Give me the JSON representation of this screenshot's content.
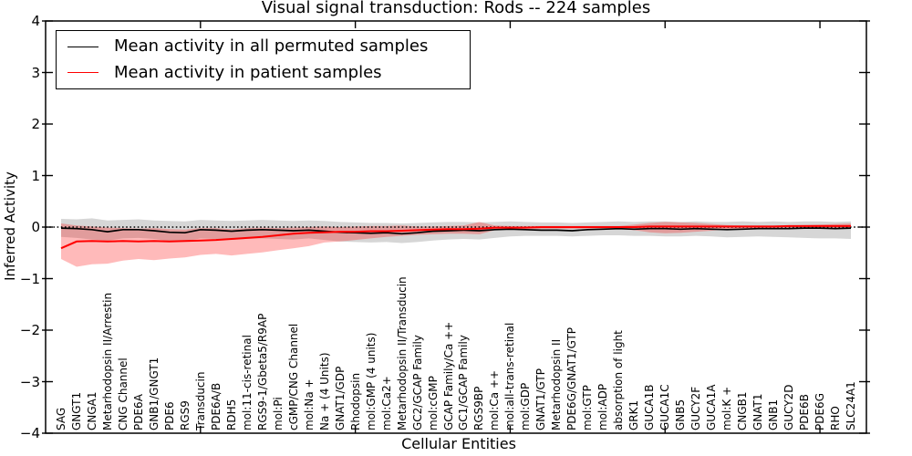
{
  "chart_data": {
    "type": "line",
    "title": "Visual signal transduction: Rods -- 224 samples",
    "xlabel": "Cellular Entities",
    "ylabel": "Inferred Activity",
    "ylim": [
      -4,
      4
    ],
    "xlim": [
      0,
      53
    ],
    "yticks": [
      4,
      3,
      2,
      1,
      0,
      -1,
      -2,
      -3,
      -4
    ],
    "xticks": [
      10,
      20,
      30,
      40,
      50
    ],
    "grid": false,
    "background": "#ffffff",
    "legend_position": "upper left",
    "zero_line": {
      "y": 0,
      "style": "dotted",
      "color": "#000000"
    },
    "categories": [
      "SAG",
      "GNGT1",
      "CNGA1",
      "Metarhodopsin II/Arrestin",
      "CNG Channel",
      "PDE6A",
      "GNB1/GNGT1",
      "PDE6",
      "RGS9",
      "Transducin",
      "PDE6A/B",
      "RDH5",
      "mol:11-cis-retinal",
      "RGS9-1/Gbeta5/R9AP",
      "mol:Pi",
      "cGMP/CNG Channel",
      "mol:Na +",
      "Na + (4 Units)",
      "GNAT1/GDP",
      "Rhodopsin",
      "mol:GMP (4 units)",
      "mol:Ca2+",
      "Metarhodopsin II/Transducin",
      "GC2/GCAP Family",
      "mol:cGMP",
      "GCAP Family/Ca ++",
      "GC1/GCAP Family",
      "RGS9BP",
      "mol:Ca ++",
      "mol:all-trans-retinal",
      "mol:GDP",
      "GNAT1/GTP",
      "Metarhodopsin II",
      "PDE6G/GNAT1/GTP",
      "mol:GTP",
      "mol:ADP",
      "absorption of light",
      "GRK1",
      "GUCA1B",
      "GUCA1C",
      "GNB5",
      "GUCY2F",
      "GUCA1A",
      "mol:K +",
      "CNGB1",
      "GNAT1",
      "GNB1",
      "GUCY2D",
      "PDE6B",
      "PDE6G",
      "RHO",
      "SLC24A1"
    ],
    "series": [
      {
        "name": "Mean activity in all permuted samples",
        "color": "#000000",
        "band_color": "rgba(0,0,0,0.16)",
        "values": [
          -0.02,
          -0.03,
          -0.05,
          -0.09,
          -0.05,
          -0.05,
          -0.07,
          -0.1,
          -0.11,
          -0.05,
          -0.06,
          -0.08,
          -0.06,
          -0.05,
          -0.06,
          -0.07,
          -0.06,
          -0.08,
          -0.1,
          -0.11,
          -0.12,
          -0.11,
          -0.13,
          -0.11,
          -0.08,
          -0.07,
          -0.06,
          -0.07,
          -0.05,
          -0.04,
          -0.05,
          -0.06,
          -0.06,
          -0.07,
          -0.05,
          -0.04,
          -0.03,
          -0.04,
          -0.03,
          -0.03,
          -0.04,
          -0.03,
          -0.04,
          -0.05,
          -0.04,
          -0.03,
          -0.03,
          -0.03,
          -0.02,
          -0.02,
          -0.03,
          -0.02
        ],
        "band_high": [
          0.16,
          0.15,
          0.17,
          0.13,
          0.14,
          0.15,
          0.13,
          0.12,
          0.11,
          0.14,
          0.13,
          0.12,
          0.13,
          0.14,
          0.13,
          0.12,
          0.13,
          0.12,
          0.1,
          0.09,
          0.08,
          0.08,
          0.07,
          0.08,
          0.09,
          0.1,
          0.1,
          0.09,
          0.1,
          0.11,
          0.1,
          0.09,
          0.09,
          0.08,
          0.09,
          0.1,
          0.11,
          0.1,
          0.11,
          0.11,
          0.1,
          0.11,
          0.1,
          0.1,
          0.11,
          0.1,
          0.11,
          0.1,
          0.11,
          0.11,
          0.1,
          0.11
        ],
        "band_low": [
          -0.19,
          -0.21,
          -0.24,
          -0.26,
          -0.22,
          -0.21,
          -0.23,
          -0.27,
          -0.28,
          -0.22,
          -0.23,
          -0.25,
          -0.23,
          -0.22,
          -0.23,
          -0.24,
          -0.22,
          -0.25,
          -0.28,
          -0.29,
          -0.3,
          -0.29,
          -0.31,
          -0.29,
          -0.26,
          -0.24,
          -0.23,
          -0.24,
          -0.21,
          -0.18,
          -0.17,
          -0.17,
          -0.17,
          -0.18,
          -0.17,
          -0.16,
          -0.16,
          -0.17,
          -0.17,
          -0.18,
          -0.18,
          -0.17,
          -0.18,
          -0.2,
          -0.19,
          -0.18,
          -0.19,
          -0.2,
          -0.21,
          -0.22,
          -0.22,
          -0.23
        ]
      },
      {
        "name": "Mean activity in patient samples",
        "color": "#ff0000",
        "band_color": "rgba(255,0,0,0.27)",
        "values": [
          -0.41,
          -0.28,
          -0.27,
          -0.28,
          -0.27,
          -0.28,
          -0.27,
          -0.28,
          -0.27,
          -0.26,
          -0.25,
          -0.23,
          -0.21,
          -0.19,
          -0.16,
          -0.13,
          -0.11,
          -0.1,
          -0.09,
          -0.09,
          -0.08,
          -0.08,
          -0.07,
          -0.06,
          -0.05,
          -0.04,
          -0.04,
          -0.03,
          -0.01,
          -0.01,
          -0.01,
          0.0,
          0.0,
          0.0,
          0.0,
          0.0,
          0.0,
          0.0,
          0.01,
          0.01,
          0.01,
          0.01,
          0.01,
          0.01,
          0.01,
          0.01,
          0.01,
          0.02,
          0.02,
          0.02,
          0.02,
          0.02
        ],
        "band_high": [
          0.07,
          0.03,
          0.01,
          -0.01,
          -0.02,
          -0.03,
          -0.02,
          -0.04,
          -0.05,
          -0.02,
          -0.02,
          -0.04,
          -0.02,
          -0.01,
          -0.02,
          -0.01,
          0.0,
          0.01,
          0.0,
          0.01,
          0.02,
          0.02,
          0.03,
          0.01,
          0.01,
          0.02,
          0.03,
          0.1,
          0.03,
          0.02,
          0.02,
          0.02,
          0.02,
          0.02,
          0.02,
          0.02,
          0.02,
          0.05,
          0.08,
          0.1,
          0.09,
          0.08,
          0.06,
          0.04,
          0.03,
          0.03,
          0.03,
          0.03,
          0.04,
          0.05,
          0.06,
          0.07
        ],
        "band_low": [
          -0.62,
          -0.77,
          -0.72,
          -0.71,
          -0.65,
          -0.62,
          -0.64,
          -0.61,
          -0.59,
          -0.54,
          -0.52,
          -0.55,
          -0.52,
          -0.49,
          -0.45,
          -0.41,
          -0.37,
          -0.3,
          -0.28,
          -0.25,
          -0.22,
          -0.19,
          -0.17,
          -0.15,
          -0.14,
          -0.13,
          -0.13,
          -0.14,
          -0.06,
          -0.04,
          -0.03,
          -0.03,
          -0.03,
          -0.03,
          -0.03,
          -0.03,
          -0.04,
          -0.06,
          -0.1,
          -0.12,
          -0.11,
          -0.09,
          -0.07,
          -0.04,
          -0.03,
          -0.03,
          -0.03,
          -0.03,
          -0.02,
          -0.02,
          -0.02,
          -0.02
        ]
      }
    ]
  },
  "legend": {
    "items": [
      {
        "label": "Mean activity in all permuted samples",
        "color": "#000000"
      },
      {
        "label": "Mean activity in patient samples",
        "color": "#ff0000"
      }
    ]
  }
}
